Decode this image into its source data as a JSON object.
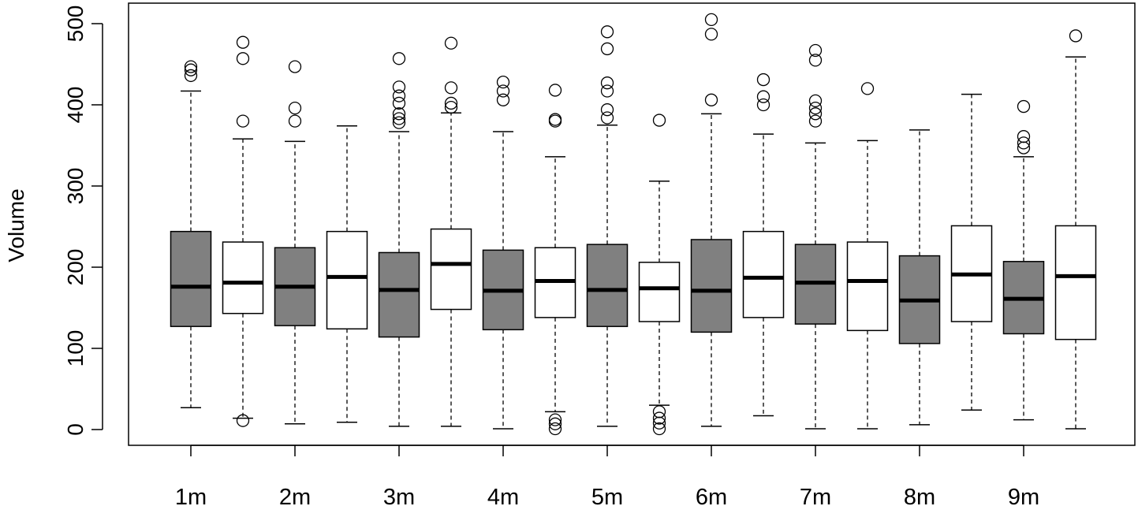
{
  "chart_data": {
    "type": "boxplot",
    "title": "",
    "xlabel": "",
    "ylabel": "Volume",
    "ylim": [
      -20,
      520
    ],
    "yticks": [
      0,
      100,
      200,
      300,
      400,
      500
    ],
    "xtick_labels": [
      "1m",
      "2m",
      "3m",
      "4m",
      "5m",
      "6m",
      "7m",
      "8m",
      "9m"
    ],
    "grid": false,
    "colors": {
      "filled": "#808080",
      "open": "#ffffff",
      "stroke": "#000000"
    },
    "boxes": [
      {
        "fill": "filled",
        "whisker_low": 27,
        "q1": 127,
        "median": 176,
        "q3": 244,
        "whisker_high": 417,
        "outliers": [
          436,
          443,
          447
        ]
      },
      {
        "fill": "open",
        "whisker_low": 14,
        "q1": 143,
        "median": 181,
        "q3": 231,
        "whisker_high": 358,
        "outliers": [
          11,
          380,
          457,
          477
        ]
      },
      {
        "fill": "filled",
        "whisker_low": 7,
        "q1": 128,
        "median": 176,
        "q3": 224,
        "whisker_high": 355,
        "outliers": [
          380,
          396,
          447
        ]
      },
      {
        "fill": "open",
        "whisker_low": 9,
        "q1": 124,
        "median": 188,
        "q3": 244,
        "whisker_high": 374,
        "outliers": []
      },
      {
        "fill": "filled",
        "whisker_low": 4,
        "q1": 114,
        "median": 172,
        "q3": 218,
        "whisker_high": 367,
        "outliers": [
          378,
          383,
          389,
          402,
          411,
          422,
          457
        ]
      },
      {
        "fill": "open",
        "whisker_low": 4,
        "q1": 148,
        "median": 204,
        "q3": 247,
        "whisker_high": 390,
        "outliers": [
          397,
          402,
          421,
          476
        ]
      },
      {
        "fill": "filled",
        "whisker_low": 1,
        "q1": 123,
        "median": 171,
        "q3": 221,
        "whisker_high": 367,
        "outliers": [
          406,
          417,
          428
        ]
      },
      {
        "fill": "open",
        "whisker_low": 22,
        "q1": 138,
        "median": 183,
        "q3": 224,
        "whisker_high": 336,
        "outliers": [
          1,
          7,
          12,
          380,
          382,
          418
        ]
      },
      {
        "fill": "filled",
        "whisker_low": 4,
        "q1": 127,
        "median": 172,
        "q3": 228,
        "whisker_high": 375,
        "outliers": [
          384,
          394,
          417,
          427,
          469,
          490
        ]
      },
      {
        "fill": "open",
        "whisker_low": 30,
        "q1": 133,
        "median": 174,
        "q3": 206,
        "whisker_high": 306,
        "outliers": [
          1,
          8,
          14,
          22,
          381
        ]
      },
      {
        "fill": "filled",
        "whisker_low": 4,
        "q1": 120,
        "median": 171,
        "q3": 234,
        "whisker_high": 389,
        "outliers": [
          406,
          487,
          505
        ]
      },
      {
        "fill": "open",
        "whisker_low": 17,
        "q1": 138,
        "median": 187,
        "q3": 244,
        "whisker_high": 364,
        "outliers": [
          400,
          410,
          431
        ]
      },
      {
        "fill": "filled",
        "whisker_low": 1,
        "q1": 130,
        "median": 181,
        "q3": 228,
        "whisker_high": 353,
        "outliers": [
          380,
          389,
          396,
          405,
          455,
          467
        ]
      },
      {
        "fill": "open",
        "whisker_low": 1,
        "q1": 122,
        "median": 183,
        "q3": 231,
        "whisker_high": 356,
        "outliers": [
          420
        ]
      },
      {
        "fill": "filled",
        "whisker_low": 6,
        "q1": 106,
        "median": 159,
        "q3": 214,
        "whisker_high": 369,
        "outliers": []
      },
      {
        "fill": "open",
        "whisker_low": 24,
        "q1": 133,
        "median": 191,
        "q3": 251,
        "whisker_high": 413,
        "outliers": []
      },
      {
        "fill": "filled",
        "whisker_low": 12,
        "q1": 118,
        "median": 161,
        "q3": 207,
        "whisker_high": 336,
        "outliers": [
          347,
          353,
          361,
          398
        ]
      },
      {
        "fill": "open",
        "whisker_low": 1,
        "q1": 111,
        "median": 189,
        "q3": 251,
        "whisker_high": 459,
        "outliers": [
          485
        ]
      }
    ]
  }
}
